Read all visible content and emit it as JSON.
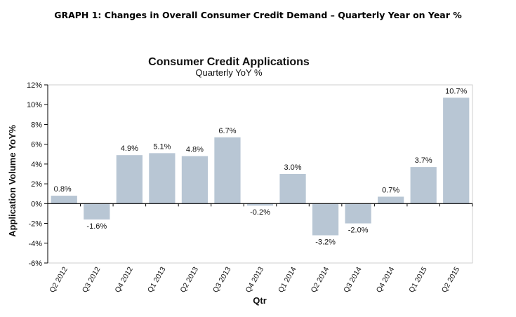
{
  "caption": "GRAPH 1: Changes in Overall Consumer Credit Demand – Quarterly Year on Year %",
  "colors": {
    "bar": "#b8c6d4",
    "axis": "#000000",
    "plot_border": "#cfcfcf"
  },
  "chart_data": {
    "type": "bar",
    "title": "Consumer Credit Applications",
    "subtitle": "Quarterly YoY %",
    "xlabel": "Qtr",
    "ylabel": "Application Volume YoY%",
    "ylim": [
      -6,
      12
    ],
    "yticks": [
      "-6%",
      "-4%",
      "-2%",
      "0%",
      "2%",
      "4%",
      "6%",
      "8%",
      "10%",
      "12%"
    ],
    "ytick_values": [
      -6,
      -4,
      -2,
      0,
      2,
      4,
      6,
      8,
      10,
      12
    ],
    "categories": [
      "Q2 2012",
      "Q3 2012",
      "Q4 2012",
      "Q1 2013",
      "Q2 2013",
      "Q3 2013",
      "Q4 2013",
      "Q1 2014",
      "Q2 2014",
      "Q3 2014",
      "Q4 2014",
      "Q1 2015",
      "Q2 2015"
    ],
    "values": [
      0.8,
      -1.6,
      4.9,
      5.1,
      4.8,
      6.7,
      -0.2,
      3.0,
      -3.2,
      -2.0,
      0.7,
      3.7,
      10.7
    ],
    "data_labels": [
      "0.8%",
      "-1.6%",
      "4.9%",
      "5.1%",
      "4.8%",
      "6.7%",
      "-0.2%",
      "3.0%",
      "-3.2%",
      "-2.0%",
      "0.7%",
      "3.7%",
      "10.7%"
    ],
    "grid": false,
    "legend": "none"
  }
}
